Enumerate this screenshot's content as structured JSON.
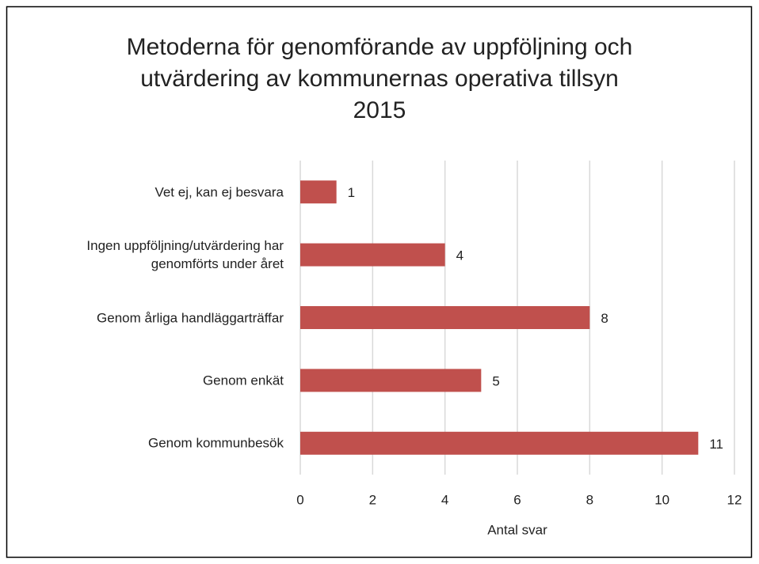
{
  "chart_data": {
    "type": "hbar",
    "title": "Metoderna för genomförande av uppföljning och\nutvärdering av kommunernas operativa tillsyn\n2015",
    "categories": [
      "Vet ej, kan ej besvara",
      "Ingen uppföljning/utvärdering har\ngenomförts under året",
      "Genom årliga handläggarträffar",
      "Genom enkät",
      "Genom kommunbesök"
    ],
    "values": [
      1,
      4,
      8,
      5,
      11
    ],
    "color": "#c0504d",
    "xlabel": "Antal svar",
    "xlim": [
      0,
      12
    ],
    "xticks": [
      0,
      2,
      4,
      6,
      8,
      10,
      12
    ],
    "grid": true
  }
}
